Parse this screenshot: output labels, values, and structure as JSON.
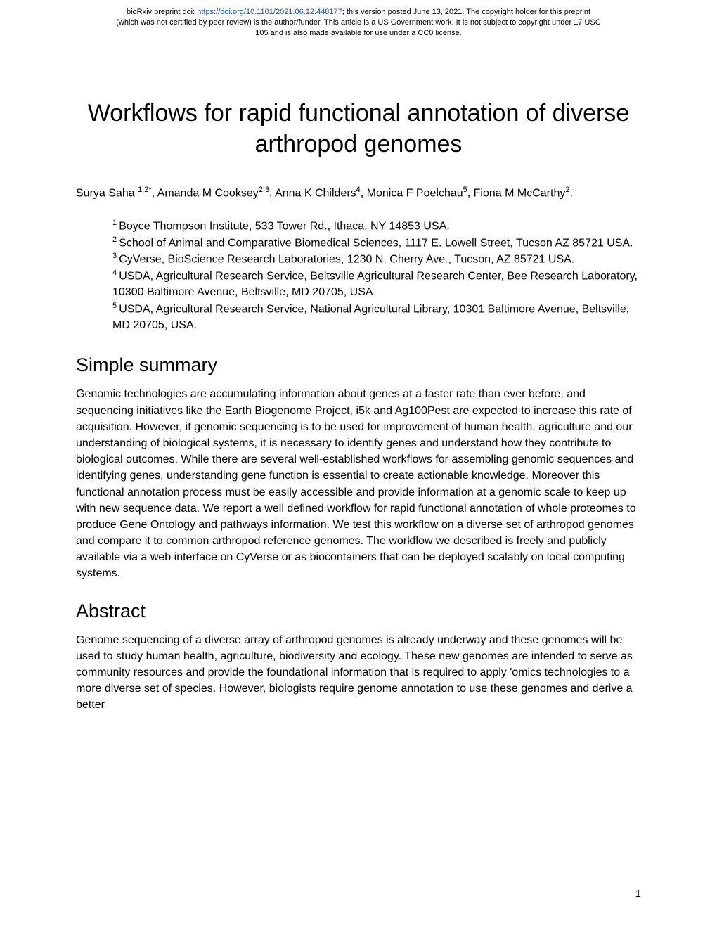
{
  "preprint": {
    "prefix": "bioRxiv preprint doi: ",
    "doi_url": "https://doi.org/10.1101/2021.06.12.448177",
    "line1_rest": "; this version posted June 13, 2021. The copyright holder for this preprint",
    "line2": "(which was not certified by peer review) is the author/funder. This article is a US Government work. It is not subject to copyright under 17 USC",
    "line3": "105 and is also made available for use under a CC0 license."
  },
  "title": "Workflows for rapid functional annotation of diverse arthropod genomes",
  "authors": {
    "a1_name": "Surya Saha ",
    "a1_sup": "1,2*",
    "sep1": ", ",
    "a2_name": "Amanda M Cooksey",
    "a2_sup": "2,3",
    "sep2": ", ",
    "a3_name": "Anna K Childers",
    "a3_sup": "4",
    "sep3": ", ",
    "a4_name": "Monica F Poelchau",
    "a4_sup": "5",
    "sep4": ", ",
    "a5_name": "Fiona M McCarthy",
    "a5_sup": "2",
    "end": "."
  },
  "affiliations": {
    "n1": "1 ",
    "t1": "Boyce Thompson Institute, 533 Tower Rd., Ithaca, NY 14853 USA.",
    "n2": "2 ",
    "t2": "School of Animal and Comparative Biomedical Sciences, 1117 E. Lowell Street, Tucson AZ 85721 USA.",
    "n3": "3 ",
    "t3": "CyVerse, BioScience Research Laboratories, 1230 N. Cherry Ave., Tucson, AZ 85721 USA.",
    "n4": "4 ",
    "t4": "USDA, Agricultural Research Service, Beltsville Agricultural Research Center, Bee Research Laboratory, 10300 Baltimore Avenue, Beltsville, MD 20705, USA",
    "n5": "5 ",
    "t5": "USDA, Agricultural Research Service, National Agricultural Library, 10301 Baltimore Avenue, Beltsville, MD 20705, USA."
  },
  "sections": {
    "simple_summary_heading": "Simple summary",
    "simple_summary_body": "Genomic technologies are accumulating information about genes at a faster rate than ever before, and sequencing initiatives like the Earth Biogenome Project, i5k and Ag100Pest are expected to increase this rate of acquisition. However, if genomic sequencing is to be used for improvement of human health, agriculture and our understanding of biological systems, it is necessary to identify genes and understand how they contribute to biological outcomes. While there are several well-established workflows for assembling genomic sequences and identifying genes, understanding gene function is essential to create actionable knowledge. Moreover this functional annotation process must be easily accessible and provide information at a genomic scale to keep up with new sequence data. We report a well defined workflow for rapid functional annotation of whole proteomes to produce Gene Ontology and pathways information. We test this workflow on a diverse set of arthropod genomes and compare it to common arthropod reference genomes. The workflow we described is freely and publicly available via a web interface on CyVerse or as biocontainers that can be deployed scalably on local computing systems.",
    "abstract_heading": "Abstract",
    "abstract_body": "Genome sequencing of a diverse array of arthropod genomes is already underway and these genomes will be used to study human health, agriculture, biodiversity and ecology. These new genomes are intended to serve as community resources and provide the foundational information that is required to apply 'omics technologies to a more diverse set of species. However, biologists require genome annotation to use these genomes and derive a better"
  },
  "page_number": "1",
  "colors": {
    "link": "#1155cc",
    "text": "#000000",
    "background": "#ffffff"
  },
  "fonts": {
    "body_size_pt": 12,
    "title_size_pt": 26,
    "heading_size_pt": 20,
    "header_size_pt": 8
  }
}
